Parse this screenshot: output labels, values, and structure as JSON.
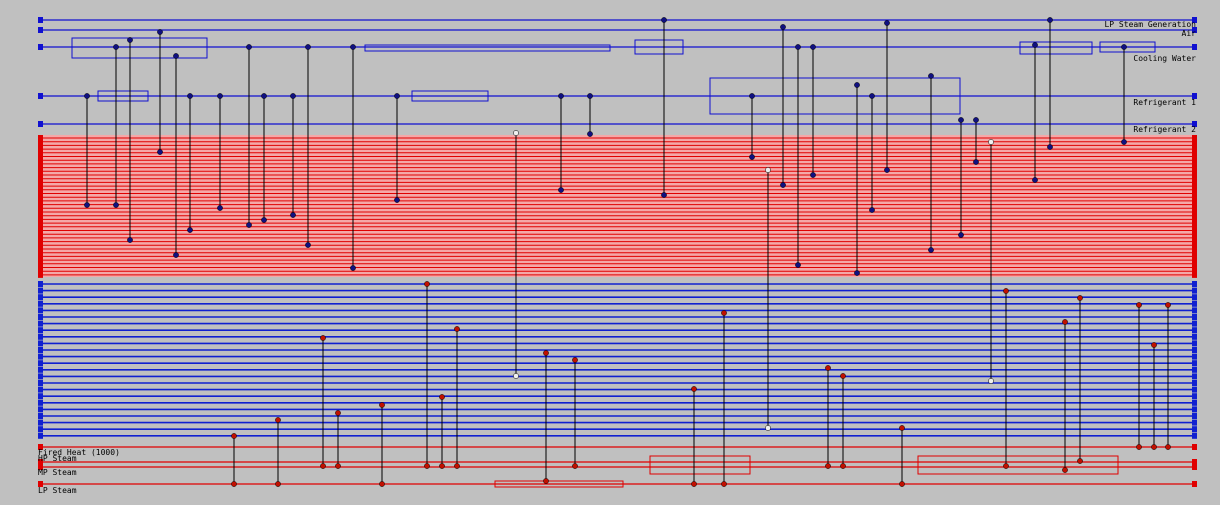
{
  "utilities_top": [
    {
      "label": "LP Steam Generation"
    },
    {
      "label": "Air"
    },
    {
      "label": "Cooling Water"
    },
    {
      "label": "Refrigerant 1"
    },
    {
      "label": "Refrigerant 2"
    }
  ],
  "utilities_bottom": [
    {
      "label": "Fired Heat (1000)"
    },
    {
      "label": "HP Steam"
    },
    {
      "label": "MP Steam"
    },
    {
      "label": "LP Steam"
    }
  ]
}
